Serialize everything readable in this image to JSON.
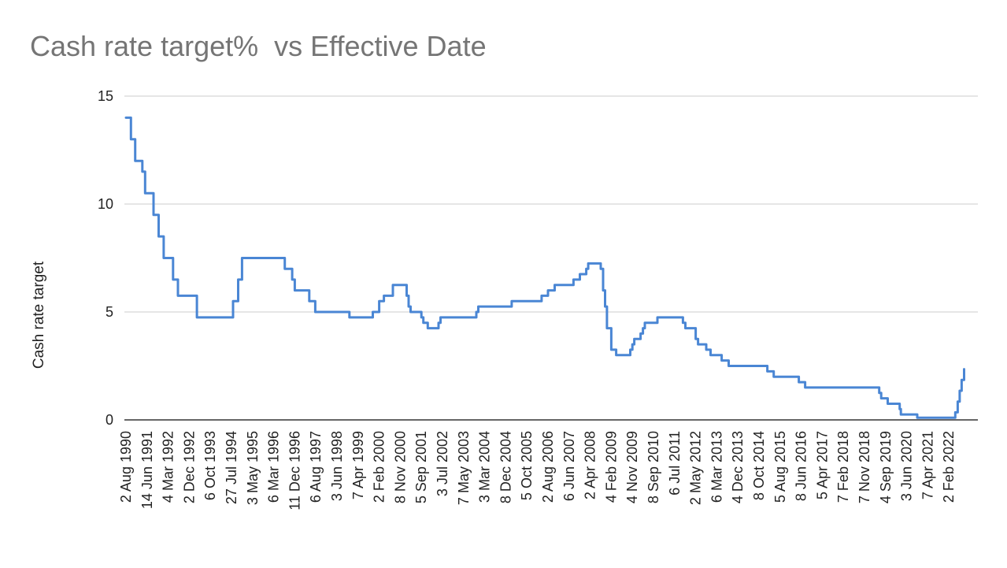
{
  "chart_data": {
    "type": "line",
    "title": "Cash rate target%  vs Effective Date",
    "xlabel": "",
    "ylabel": "Cash rate target",
    "ylim": [
      0,
      15
    ],
    "yticks": [
      "0",
      "5",
      "10",
      "15"
    ],
    "grid": true,
    "legend": "none",
    "line_color": "#4a86d4",
    "x_tick_labels": [
      "2 Aug 1990",
      "14 Jun 1991",
      "4 Mar 1992",
      "2 Dec 1992",
      "6 Oct 1993",
      "27 Jul 1994",
      "3 May 1995",
      "6 Mar 1996",
      "11 Dec 1996",
      "6 Aug 1997",
      "3 Jun 1998",
      "7 Apr 1999",
      "2 Feb 2000",
      "8 Nov 2000",
      "5 Sep 2001",
      "3 Jul 2002",
      "7 May 2003",
      "3 Mar 2004",
      "8 Dec 2004",
      "5 Oct 2005",
      "2 Aug 2006",
      "6 Jun 2007",
      "2 Apr 2008",
      "4 Feb 2009",
      "4 Nov 2009",
      "8 Sep 2010",
      "6 Jul 2011",
      "2 May 2012",
      "6 Mar 2013",
      "4 Dec 2013",
      "8 Oct 2014",
      "5 Aug 2015",
      "8 Jun 2016",
      "5 Apr 2017",
      "7 Feb 2018",
      "7 Nov 2018",
      "4 Sep 2019",
      "3 Jun 2020",
      "7 Apr 2021",
      "2 Feb 2022"
    ],
    "series": [
      {
        "name": "",
        "x": [
          "1990-08-02",
          "1990-10-15",
          "1990-12-18",
          "1991-04-04",
          "1991-05-16",
          "1991-09-03",
          "1991-11-06",
          "1992-01-08",
          "1992-05-06",
          "1992-07-08",
          "1993-03-23",
          "1993-07-30",
          "1994-08-17",
          "1994-10-24",
          "1994-12-14",
          "1996-07-31",
          "1996-11-06",
          "1996-12-11",
          "1997-05-23",
          "1997-07-30",
          "1998-12-02",
          "1999-11-03",
          "2000-02-02",
          "2000-04-05",
          "2000-08-02",
          "2001-02-07",
          "2001-03-07",
          "2001-04-04",
          "2001-09-05",
          "2001-10-03",
          "2001-12-05",
          "2002-05-08",
          "2002-06-05",
          "2003-11-05",
          "2003-12-03",
          "2005-03-02",
          "2006-05-03",
          "2006-08-02",
          "2006-11-08",
          "2007-08-08",
          "2007-11-07",
          "2008-02-06",
          "2008-03-05",
          "2008-09-03",
          "2008-10-08",
          "2008-11-05",
          "2008-12-03",
          "2009-02-04",
          "2009-04-08",
          "2009-10-07",
          "2009-11-04",
          "2009-12-02",
          "2010-03-03",
          "2010-04-07",
          "2010-05-05",
          "2010-11-03",
          "2011-11-02",
          "2011-12-07",
          "2012-05-02",
          "2012-06-06",
          "2012-10-03",
          "2012-12-05",
          "2013-05-08",
          "2013-08-07",
          "2015-02-04",
          "2015-05-06",
          "2016-05-04",
          "2016-08-03",
          "2019-06-05",
          "2019-07-03",
          "2019-10-02",
          "2020-03-04",
          "2020-03-20",
          "2020-11-04",
          "2022-05-04",
          "2022-06-08",
          "2022-07-06",
          "2022-08-03",
          "2022-09-07"
        ],
        "values": [
          14.0,
          13.0,
          12.0,
          11.5,
          10.5,
          9.5,
          8.5,
          7.5,
          6.5,
          5.75,
          4.75,
          4.75,
          5.5,
          6.5,
          7.5,
          7.0,
          6.5,
          6.0,
          5.5,
          5.0,
          4.75,
          5.0,
          5.5,
          5.75,
          6.25,
          5.75,
          5.25,
          5.0,
          4.75,
          4.5,
          4.25,
          4.5,
          4.75,
          5.0,
          5.25,
          5.5,
          5.75,
          6.0,
          6.25,
          6.5,
          6.75,
          7.0,
          7.25,
          7.0,
          6.0,
          5.25,
          4.25,
          3.25,
          3.0,
          3.25,
          3.5,
          3.75,
          4.0,
          4.25,
          4.5,
          4.75,
          4.5,
          4.25,
          3.75,
          3.5,
          3.25,
          3.0,
          2.75,
          2.5,
          2.25,
          2.0,
          1.75,
          1.5,
          1.25,
          1.0,
          0.75,
          0.5,
          0.25,
          0.1,
          0.35,
          0.85,
          1.35,
          1.85,
          2.35
        ]
      }
    ]
  }
}
